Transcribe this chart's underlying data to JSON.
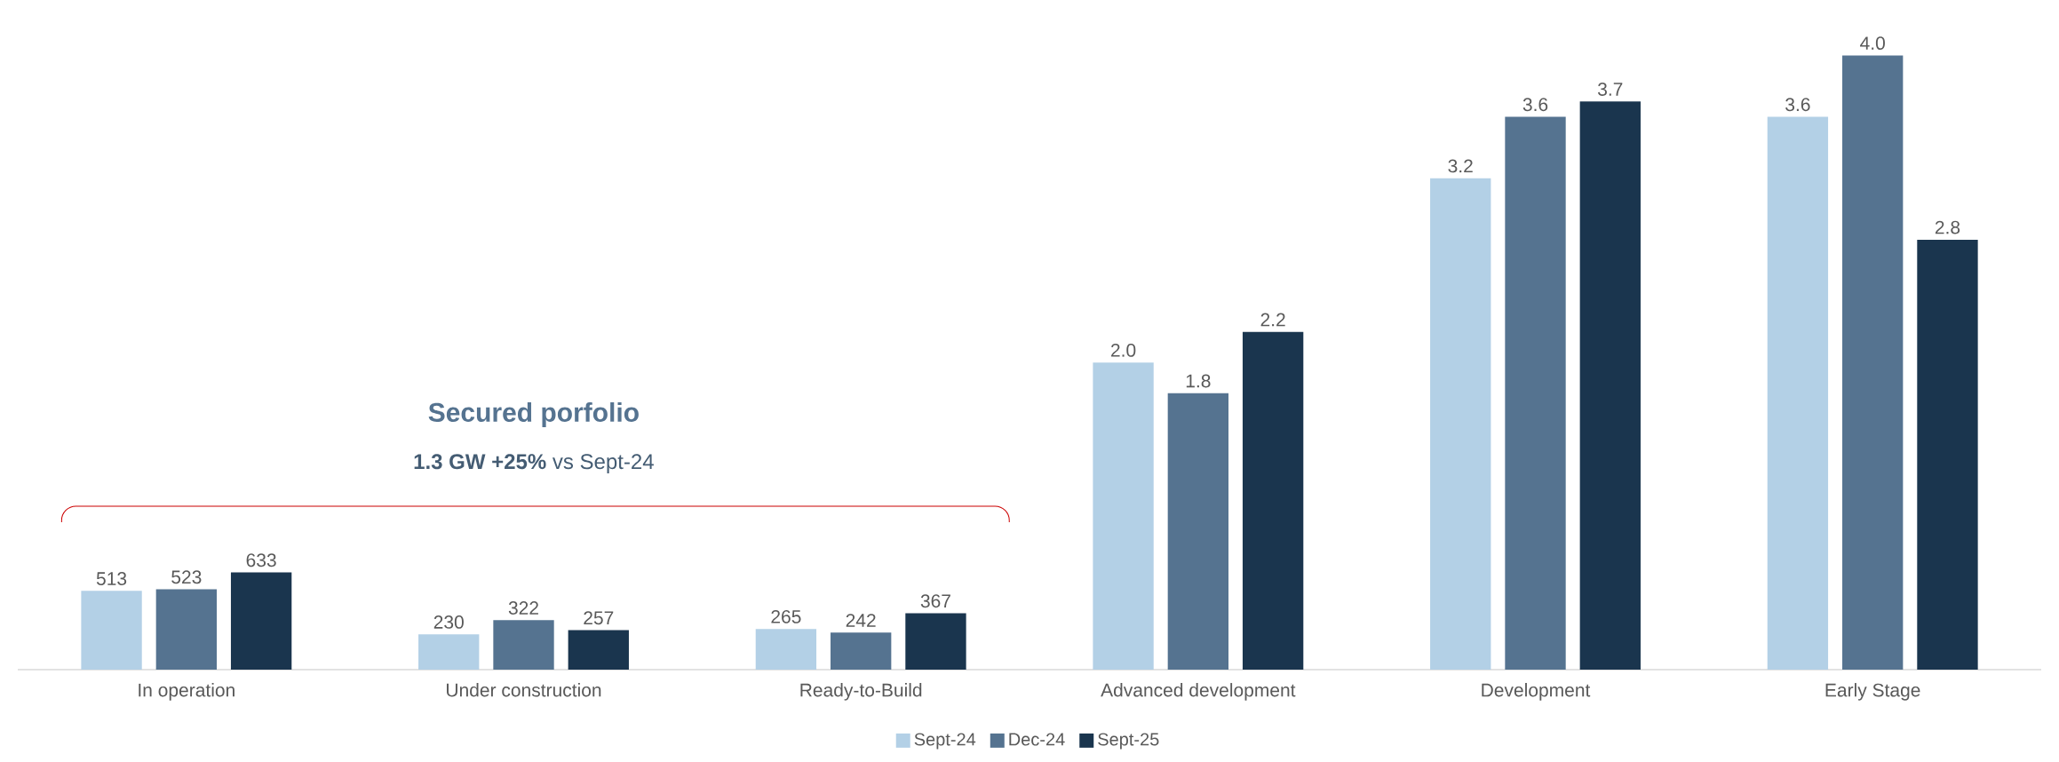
{
  "chart_data": [
    {
      "type": "bar",
      "categories": [
        "In operation",
        "Under construction",
        "Ready-to-Build"
      ],
      "series": [
        {
          "color": "#b3d0e6",
          "values": [
            513,
            230,
            265
          ]
        },
        {
          "color": "#557390",
          "values": [
            523,
            322,
            242
          ]
        },
        {
          "color": "#1a354e",
          "values": [
            633,
            257,
            367
          ]
        }
      ],
      "data_labels": true,
      "annotations": [
        "Secured porfolio",
        "**1.3 GW +25%** vs Sept-24"
      ],
      "grid": false
    },
    {
      "type": "bar",
      "categories": [
        "Advanced development",
        "Development",
        "Early Stage"
      ],
      "series": [
        {
          "name": "Sept-24",
          "color": "#b3d0e6",
          "values": [
            2.0,
            3.2,
            3.6
          ],
          "value_labels": [
            "2.0",
            "3.2",
            "3.6"
          ]
        },
        {
          "name": "Dec-24",
          "color": "#557390",
          "values": [
            1.8,
            3.6,
            4.0
          ],
          "value_labels": [
            "1.8",
            "3.6",
            "4.0"
          ]
        },
        {
          "name": "Sept-25",
          "color": "#1a354e",
          "values": [
            2.2,
            3.7,
            2.8
          ],
          "value_labels": [
            "2.2",
            "3.7",
            "2.8"
          ]
        }
      ],
      "legend": "bottom",
      "grid": false
    }
  ]
}
